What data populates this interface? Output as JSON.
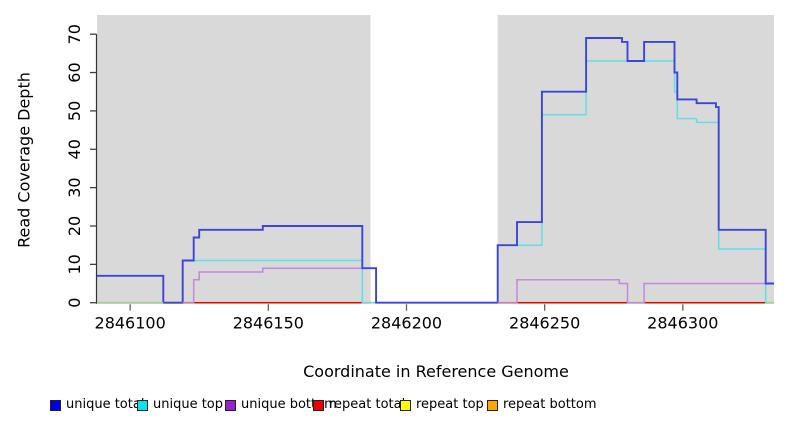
{
  "figure": {
    "x_axis_label": "Coordinate in Reference Genome",
    "y_axis_label": "Read Coverage Depth"
  },
  "legend": {
    "items": [
      {
        "label": "unique total",
        "color": "#0000e8"
      },
      {
        "label": "unique top",
        "color": "#00e5ee"
      },
      {
        "label": "unique bottom",
        "color": "#9a22cc"
      },
      {
        "label": "repeat total",
        "color": "#ee0000"
      },
      {
        "label": "repeat top",
        "color": "#ffff00"
      },
      {
        "label": "repeat bottom",
        "color": "#ffa500"
      }
    ]
  },
  "chart_data": {
    "type": "line",
    "subtype": "step-coverage",
    "title": "",
    "xlabel": "Coordinate in Reference Genome",
    "ylabel": "Read Coverage Depth",
    "xlim": [
      2846088,
      2846333
    ],
    "ylim": [
      0,
      75
    ],
    "x_ticks": [
      2846100,
      2846150,
      2846200,
      2846250,
      2846300
    ],
    "y_ticks": [
      0,
      10,
      20,
      30,
      40,
      50,
      60,
      70
    ],
    "grid": false,
    "legend_position": "bottom",
    "plot_background": "#ffffff",
    "shaded_regions": [
      {
        "x0": 2846088,
        "x1": 2846187,
        "color": "#d9d9d9"
      },
      {
        "x0": 2846233,
        "x1": 2846333,
        "color": "#d9d9d9"
      }
    ],
    "series": [
      {
        "name": "repeat bottom",
        "color": "#ff9100",
        "width": 1.6,
        "points": [
          [
            2846088,
            0
          ]
        ]
      },
      {
        "name": "repeat top",
        "color": "#ffff00",
        "width": 1.4,
        "points": [
          [
            2846088,
            0
          ]
        ]
      },
      {
        "name": "repeat total",
        "color": "#e80000",
        "width": 1.4,
        "points": [
          [
            2846088,
            0
          ]
        ]
      },
      {
        "name": "unique bottom",
        "color": "#c288dd",
        "width": 1.5,
        "points": [
          [
            2846088,
            0
          ],
          [
            2846123,
            6
          ],
          [
            2846125,
            8
          ],
          [
            2846148,
            9
          ],
          [
            2846189,
            0
          ],
          [
            2846240,
            6
          ],
          [
            2846277,
            5
          ],
          [
            2846280,
            0
          ],
          [
            2846286,
            5
          ]
        ]
      },
      {
        "name": "unique top",
        "color": "#5fe0e8",
        "width": 1.5,
        "points": [
          [
            2846088,
            0
          ],
          [
            2846119,
            11
          ],
          [
            2846184,
            0
          ],
          [
            2846233,
            15
          ],
          [
            2846249,
            49
          ],
          [
            2846265,
            63
          ],
          [
            2846297,
            55
          ],
          [
            2846298,
            48
          ],
          [
            2846305,
            47
          ],
          [
            2846313,
            14
          ],
          [
            2846330,
            0
          ]
        ]
      },
      {
        "name": "unique total",
        "color": "#3c45db",
        "width": 1.9,
        "points": [
          [
            2846088,
            7
          ],
          [
            2846112,
            0
          ],
          [
            2846119,
            11
          ],
          [
            2846123,
            17
          ],
          [
            2846125,
            19
          ],
          [
            2846148,
            20
          ],
          [
            2846184,
            9
          ],
          [
            2846189,
            0
          ],
          [
            2846233,
            15
          ],
          [
            2846240,
            21
          ],
          [
            2846249,
            55
          ],
          [
            2846265,
            69
          ],
          [
            2846278,
            68
          ],
          [
            2846280,
            63
          ],
          [
            2846286,
            68
          ],
          [
            2846297,
            60
          ],
          [
            2846298,
            53
          ],
          [
            2846305,
            52
          ],
          [
            2846312,
            51
          ],
          [
            2846313,
            19
          ],
          [
            2846330,
            5
          ]
        ]
      }
    ],
    "baseline_overlays": [
      {
        "x0": 2846088,
        "x1": 2846112,
        "color": "#98d49a"
      },
      {
        "x0": 2846119,
        "x1": 2846123,
        "color": "#d279b5"
      },
      {
        "x0": 2846233,
        "x1": 2846240,
        "color": "#d279b5"
      },
      {
        "x0": 2846330,
        "x1": 2846333,
        "color": "#98d49a"
      }
    ]
  }
}
